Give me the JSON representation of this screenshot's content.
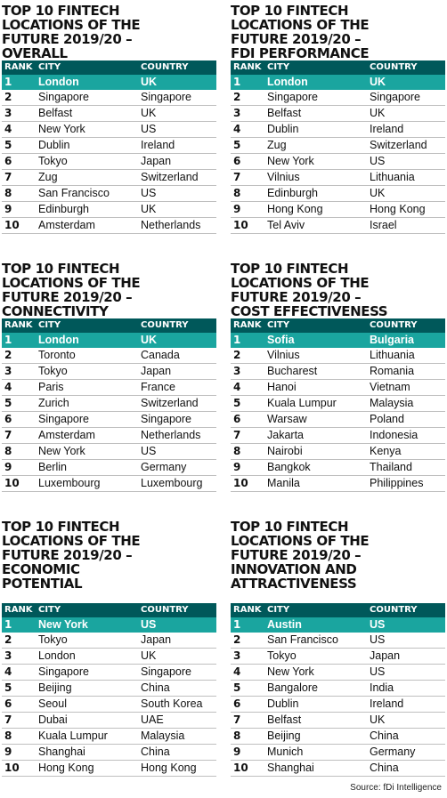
{
  "panels": [
    {
      "title_lines": [
        "TOP 10 FINTECH",
        "LOCATIONS OF THE",
        "FUTURE 2019/20 –",
        "OVERALL"
      ],
      "headers": [
        "RANK",
        "CITY",
        "COUNTRY"
      ],
      "rows": [
        [
          "1",
          "London",
          "UK"
        ],
        [
          "2",
          "Singapore",
          "Singapore"
        ],
        [
          "3",
          "Belfast",
          "UK"
        ],
        [
          "4",
          "New York",
          "US"
        ],
        [
          "5",
          "Dublin",
          "Ireland"
        ],
        [
          "6",
          "Tokyo",
          "Japan"
        ],
        [
          "7",
          "Zug",
          "Switzerland"
        ],
        [
          "8",
          "San Francisco",
          "US"
        ],
        [
          "9",
          "Edinburgh",
          "UK"
        ],
        [
          "10",
          "Amsterdam",
          "Netherlands"
        ]
      ]
    },
    {
      "title_lines": [
        "TOP 10 FINTECH",
        "LOCATIONS OF THE",
        "FUTURE 2019/20 –",
        "FDI PERFORMANCE"
      ],
      "headers": [
        "RANK",
        "CITY",
        "COUNTRY"
      ],
      "rows": [
        [
          "1",
          "London",
          "UK"
        ],
        [
          "2",
          "Singapore",
          "Singapore"
        ],
        [
          "3",
          "Belfast",
          "UK"
        ],
        [
          "4",
          "Dublin",
          "Ireland"
        ],
        [
          "5",
          "Zug",
          "Switzerland"
        ],
        [
          "6",
          "New York",
          "US"
        ],
        [
          "7",
          "Vilnius",
          "Lithuania"
        ],
        [
          "8",
          "Edinburgh",
          "UK"
        ],
        [
          "9",
          "Hong Kong",
          "Hong Kong"
        ],
        [
          "10",
          "Tel Aviv",
          "Israel"
        ]
      ]
    },
    {
      "title_lines": [
        "TOP 10 FINTECH",
        "LOCATIONS OF THE",
        "FUTURE 2019/20 –",
        "CONNECTIVITY"
      ],
      "headers": [
        "RANK",
        "CITY",
        "COUNTRY"
      ],
      "rows": [
        [
          "1",
          "London",
          "UK"
        ],
        [
          "2",
          "Toronto",
          "Canada"
        ],
        [
          "3",
          "Tokyo",
          "Japan"
        ],
        [
          "4",
          "Paris",
          "France"
        ],
        [
          "5",
          "Zurich",
          "Switzerland"
        ],
        [
          "6",
          "Singapore",
          "Singapore"
        ],
        [
          "7",
          "Amsterdam",
          "Netherlands"
        ],
        [
          "8",
          "New York",
          "US"
        ],
        [
          "9",
          "Berlin",
          "Germany"
        ],
        [
          "10",
          "Luxembourg",
          "Luxembourg"
        ]
      ]
    },
    {
      "title_lines": [
        "TOP 10 FINTECH",
        "LOCATIONS OF THE",
        "FUTURE 2019/20 –",
        "COST EFFECTIVENESS"
      ],
      "headers": [
        "RANK",
        "CITY",
        "COUNTRY"
      ],
      "rows": [
        [
          "1",
          "Sofia",
          "Bulgaria"
        ],
        [
          "2",
          "Vilnius",
          "Lithuania"
        ],
        [
          "3",
          "Bucharest",
          "Romania"
        ],
        [
          "4",
          "Hanoi",
          "Vietnam"
        ],
        [
          "5",
          "Kuala Lumpur",
          "Malaysia"
        ],
        [
          "6",
          "Warsaw",
          "Poland"
        ],
        [
          "7",
          "Jakarta",
          "Indonesia"
        ],
        [
          "8",
          "Nairobi",
          "Kenya"
        ],
        [
          "9",
          "Bangkok",
          "Thailand"
        ],
        [
          "10",
          "Manila",
          "Philippines"
        ]
      ]
    },
    {
      "title_lines": [
        "TOP 10 FINTECH",
        "LOCATIONS OF THE",
        "FUTURE 2019/20 –",
        "ECONOMIC",
        "POTENTIAL"
      ],
      "headers": [
        "RANK",
        "CITY",
        "COUNTRY"
      ],
      "rows": [
        [
          "1",
          "New York",
          "US"
        ],
        [
          "2",
          "Tokyo",
          "Japan"
        ],
        [
          "3",
          "London",
          "UK"
        ],
        [
          "4",
          "Singapore",
          "Singapore"
        ],
        [
          "5",
          "Beijing",
          "China"
        ],
        [
          "6",
          "Seoul",
          "South Korea"
        ],
        [
          "7",
          "Dubai",
          "UAE"
        ],
        [
          "8",
          "Kuala Lumpur",
          "Malaysia"
        ],
        [
          "9",
          "Shanghai",
          "China"
        ],
        [
          "10",
          "Hong Kong",
          "Hong Kong"
        ]
      ]
    },
    {
      "title_lines": [
        "TOP 10 FINTECH",
        "LOCATIONS OF THE",
        "FUTURE 2019/20 –",
        "INNOVATION AND",
        "ATTRACTIVENESS"
      ],
      "headers": [
        "RANK",
        "CITY",
        "COUNTRY"
      ],
      "rows": [
        [
          "1",
          "Austin",
          "US"
        ],
        [
          "2",
          "San Francisco",
          "US"
        ],
        [
          "3",
          "Tokyo",
          "Japan"
        ],
        [
          "4",
          "New York",
          "US"
        ],
        [
          "5",
          "Bangalore",
          "India"
        ],
        [
          "6",
          "Dublin",
          "Ireland"
        ],
        [
          "7",
          "Belfast",
          "UK"
        ],
        [
          "8",
          "Beijing",
          "China"
        ],
        [
          "9",
          "Munich",
          "Germany"
        ],
        [
          "10",
          "Shanghai",
          "China"
        ]
      ]
    }
  ],
  "source": "Source: fDi Intelligence",
  "colors": {
    "header_bg": "#00585a",
    "top_row_bg": "#1aa59f",
    "row_rule": "#bfbfbf"
  }
}
